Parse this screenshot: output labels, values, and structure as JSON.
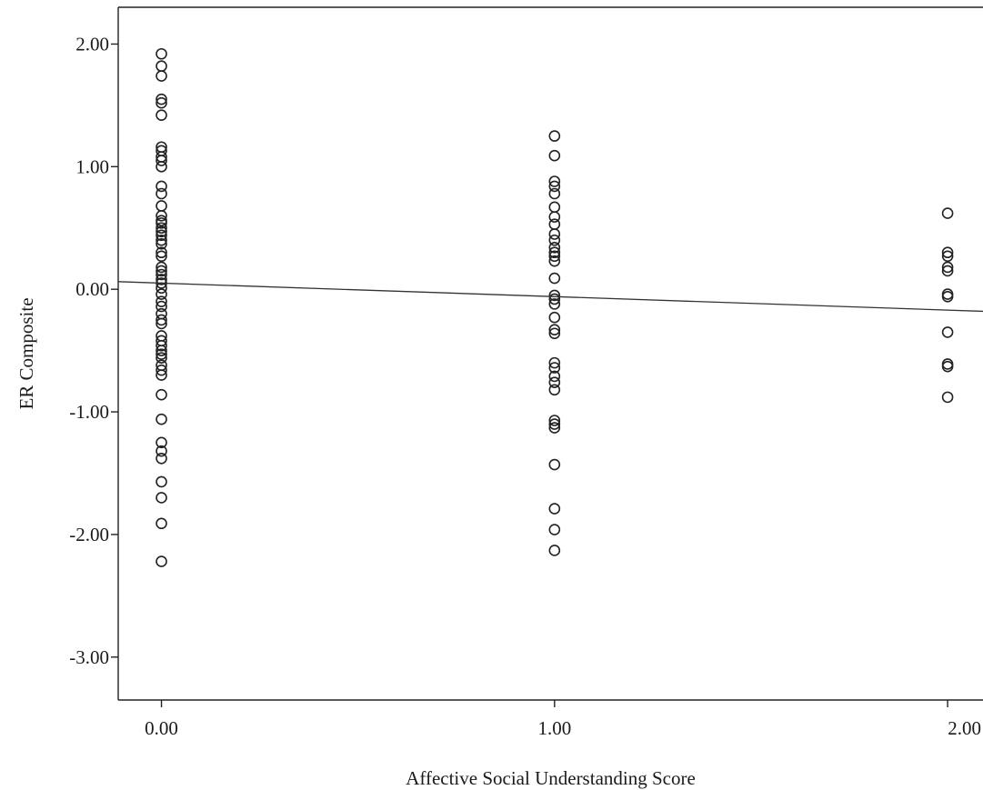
{
  "chart_data": {
    "type": "scatter",
    "title": "",
    "xlabel": "Affective Social Understanding Score",
    "ylabel": "ER Composite",
    "xlim": [
      -0.11,
      2.09
    ],
    "ylim": [
      -3.35,
      2.3
    ],
    "xticks": [
      0,
      1,
      2
    ],
    "xtick_labels": [
      "0.00",
      "1.00",
      "2.00"
    ],
    "yticks": [
      2,
      1,
      0,
      -1,
      -2,
      -3
    ],
    "ytick_labels": [
      "2.00",
      "1.00",
      "0.00",
      "-1.00",
      "-2.00",
      "-3.00"
    ],
    "grid": false,
    "legend": "none",
    "fit_line": {
      "intercept": 0.05,
      "slope": -0.11
    },
    "series": [
      {
        "points": [
          [
            0,
            1.92
          ],
          [
            0,
            1.82
          ],
          [
            0,
            1.74
          ],
          [
            0,
            1.55
          ],
          [
            0,
            1.52
          ],
          [
            0,
            1.42
          ],
          [
            0,
            1.16
          ],
          [
            0,
            1.13
          ],
          [
            0,
            1.08
          ],
          [
            0,
            1.05
          ],
          [
            0,
            1.0
          ],
          [
            0,
            0.84
          ],
          [
            0,
            0.78
          ],
          [
            0,
            0.68
          ],
          [
            0,
            0.6
          ],
          [
            0,
            0.56
          ],
          [
            0,
            0.54
          ],
          [
            0,
            0.5
          ],
          [
            0,
            0.47
          ],
          [
            0,
            0.44
          ],
          [
            0,
            0.4
          ],
          [
            0,
            0.37
          ],
          [
            0,
            0.3
          ],
          [
            0,
            0.27
          ],
          [
            0,
            0.18
          ],
          [
            0,
            0.15
          ],
          [
            0,
            0.12
          ],
          [
            0,
            0.08
          ],
          [
            0,
            0.05
          ],
          [
            0,
            0.01
          ],
          [
            0,
            -0.04
          ],
          [
            0,
            -0.1
          ],
          [
            0,
            -0.14
          ],
          [
            0,
            -0.2
          ],
          [
            0,
            -0.25
          ],
          [
            0,
            -0.28
          ],
          [
            0,
            -0.38
          ],
          [
            0,
            -0.42
          ],
          [
            0,
            -0.46
          ],
          [
            0,
            -0.5
          ],
          [
            0,
            -0.53
          ],
          [
            0,
            -0.56
          ],
          [
            0,
            -0.62
          ],
          [
            0,
            -0.66
          ],
          [
            0,
            -0.7
          ],
          [
            0,
            -0.86
          ],
          [
            0,
            -1.06
          ],
          [
            0,
            -1.25
          ],
          [
            0,
            -1.32
          ],
          [
            0,
            -1.38
          ],
          [
            0,
            -1.57
          ],
          [
            0,
            -1.7
          ],
          [
            0,
            -1.91
          ],
          [
            0,
            -2.22
          ],
          [
            1,
            1.25
          ],
          [
            1,
            1.09
          ],
          [
            1,
            0.88
          ],
          [
            1,
            0.84
          ],
          [
            1,
            0.78
          ],
          [
            1,
            0.67
          ],
          [
            1,
            0.59
          ],
          [
            1,
            0.53
          ],
          [
            1,
            0.45
          ],
          [
            1,
            0.4
          ],
          [
            1,
            0.34
          ],
          [
            1,
            0.3
          ],
          [
            1,
            0.27
          ],
          [
            1,
            0.23
          ],
          [
            1,
            0.09
          ],
          [
            1,
            -0.05
          ],
          [
            1,
            -0.08
          ],
          [
            1,
            -0.12
          ],
          [
            1,
            -0.23
          ],
          [
            1,
            -0.33
          ],
          [
            1,
            -0.36
          ],
          [
            1,
            -0.6
          ],
          [
            1,
            -0.64
          ],
          [
            1,
            -0.71
          ],
          [
            1,
            -0.76
          ],
          [
            1,
            -0.82
          ],
          [
            1,
            -1.07
          ],
          [
            1,
            -1.1
          ],
          [
            1,
            -1.13
          ],
          [
            1,
            -1.43
          ],
          [
            1,
            -1.79
          ],
          [
            1,
            -1.96
          ],
          [
            1,
            -2.13
          ],
          [
            2,
            0.62
          ],
          [
            2,
            0.3
          ],
          [
            2,
            0.27
          ],
          [
            2,
            0.18
          ],
          [
            2,
            0.15
          ],
          [
            2,
            -0.04
          ],
          [
            2,
            -0.06
          ],
          [
            2,
            -0.35
          ],
          [
            2,
            -0.61
          ],
          [
            2,
            -0.63
          ],
          [
            2,
            -0.88
          ]
        ]
      }
    ]
  }
}
